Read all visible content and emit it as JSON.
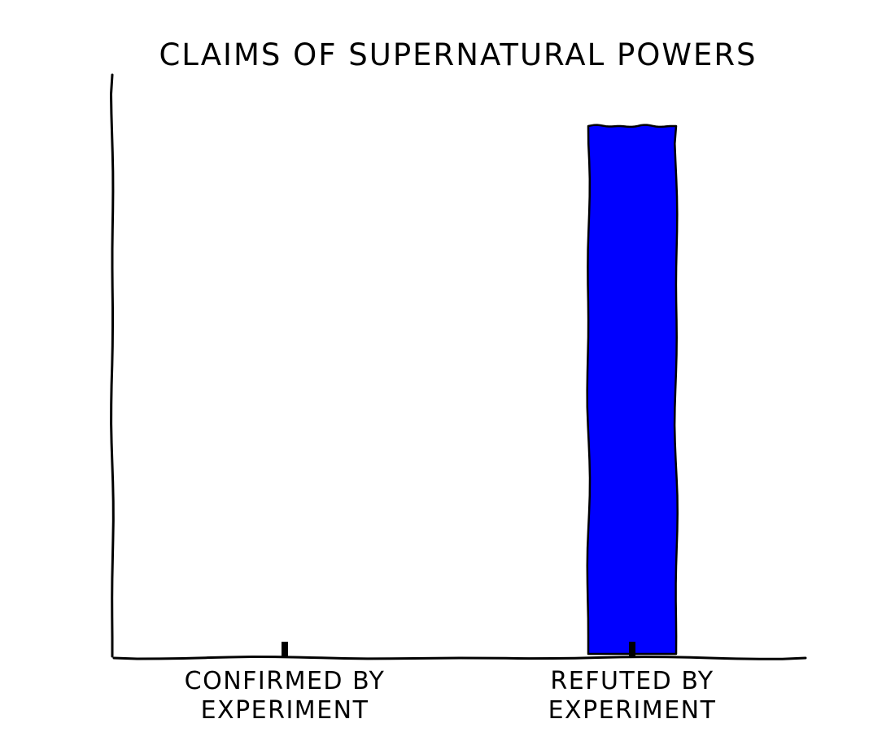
{
  "chart_data": {
    "type": "bar",
    "title": "CLAIMS OF SUPERNATURAL POWERS",
    "categories": [
      [
        "CONFIRMED BY",
        "EXPERIMENT"
      ],
      [
        "REFUTED BY",
        "EXPERIMENT"
      ]
    ],
    "values": [
      0,
      100
    ],
    "ylim": [
      0,
      100
    ],
    "xlabel": "",
    "ylabel": "",
    "grid": false,
    "colors": {
      "bar": "#0000ff",
      "outline": "#000000"
    }
  }
}
